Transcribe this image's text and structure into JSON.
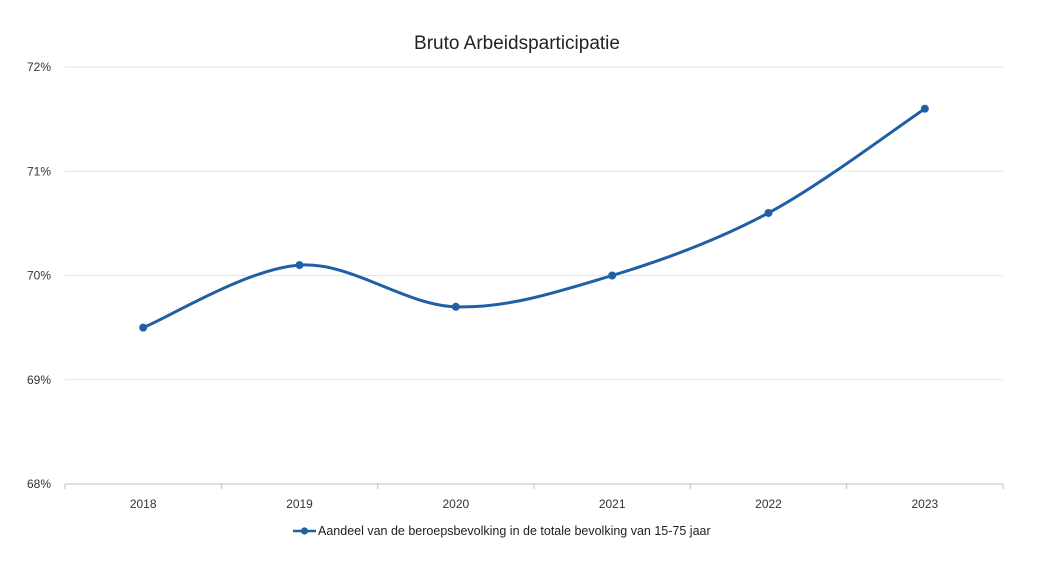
{
  "colors": {
    "series": "#1f5fa3",
    "background": "#ffffff"
  },
  "chart_data": {
    "type": "line",
    "title": "Bruto Arbeidsparticipatie",
    "xlabel": "",
    "ylabel": "",
    "x": [
      "2018",
      "2019",
      "2020",
      "2021",
      "2022",
      "2023"
    ],
    "series": [
      {
        "name": "Aandeel van de beroepsbevolking in de totale bevolking van 15-75 jaar",
        "values": [
          69.5,
          70.1,
          69.7,
          70.0,
          70.6,
          71.6
        ],
        "smooth": true,
        "marker": "circle"
      }
    ],
    "ylim": [
      68,
      72
    ],
    "yticks": [
      68,
      69,
      70,
      71,
      72
    ],
    "ytick_labels": [
      "68%",
      "69%",
      "70%",
      "71%",
      "72%"
    ],
    "grid": true,
    "legend_position": "bottom"
  }
}
